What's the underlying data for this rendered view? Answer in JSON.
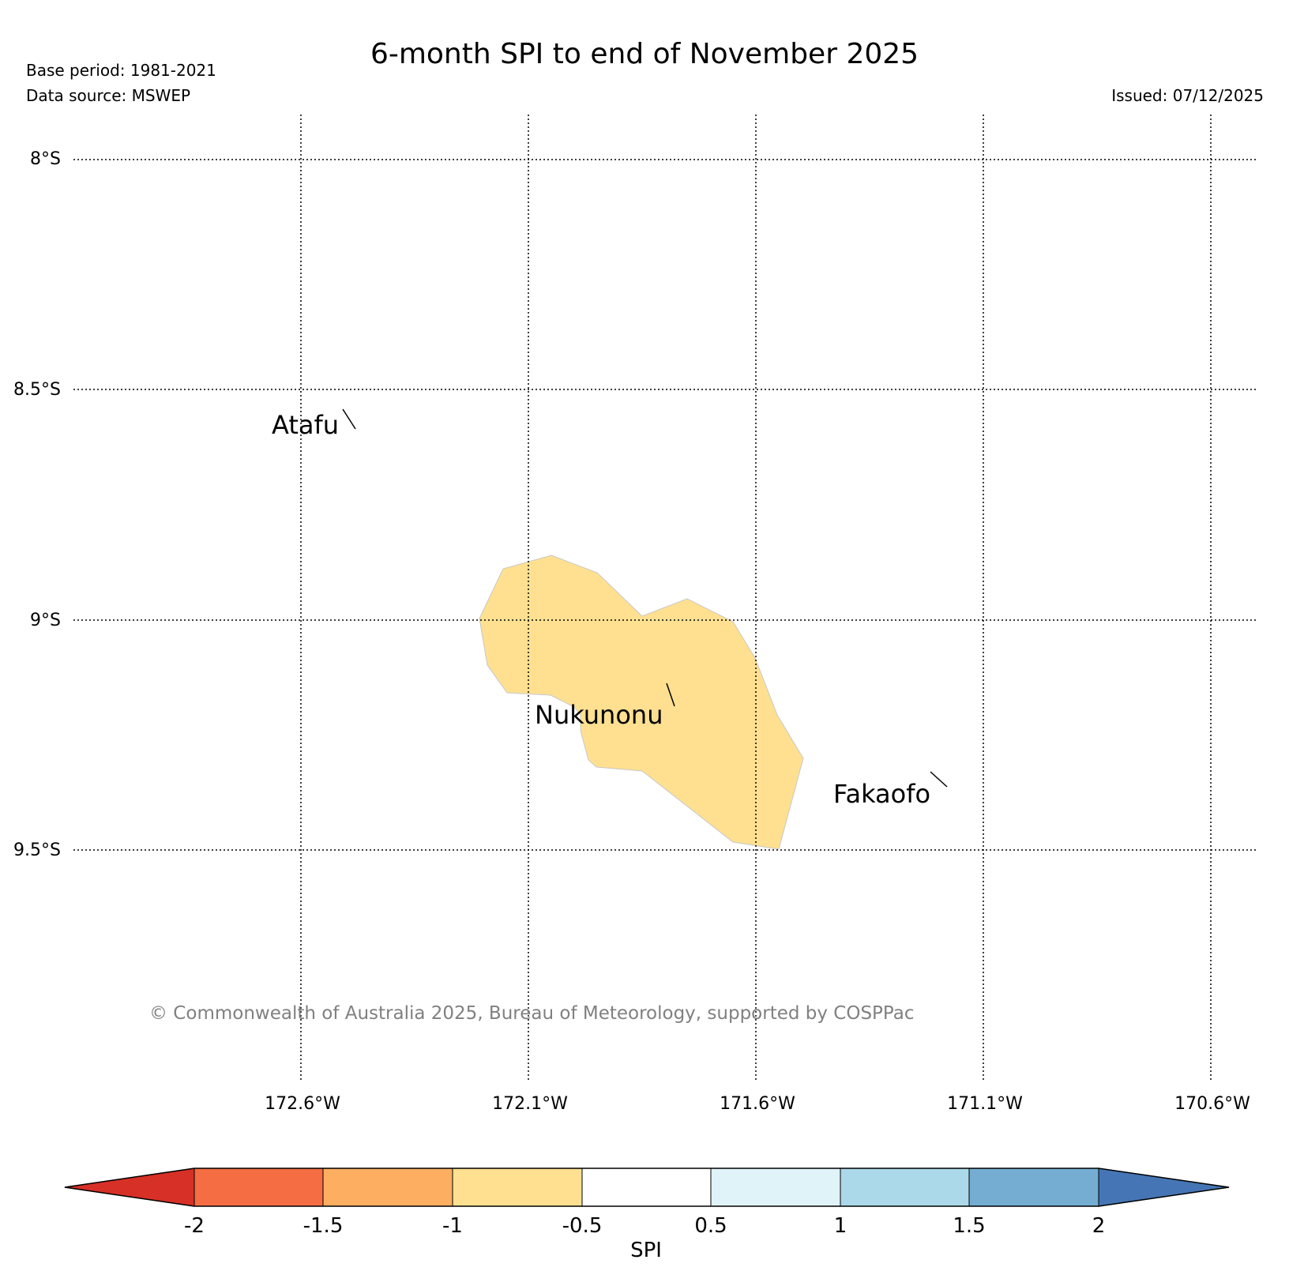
{
  "header": {
    "title": "6-month SPI to end of November 2025",
    "base_period": "Base period: 1981-2021",
    "data_source": "Data source: MSWEP",
    "issued": "Issued: 07/12/2025"
  },
  "map": {
    "lat_labels": [
      "8°S",
      "8.5°S",
      "9°S",
      "9.5°S"
    ],
    "lon_labels": [
      "172.6°W",
      "172.1°W",
      "171.6°W",
      "171.1°W",
      "170.6°W"
    ],
    "places": [
      {
        "name": "Atafu"
      },
      {
        "name": "Nukunonu"
      },
      {
        "name": "Fakaofo"
      }
    ],
    "anomaly_region": {
      "category": "-1 to -0.5",
      "color": "#fee090"
    },
    "copyright": "© Commonwealth of Australia 2025, Bureau of Meteorology, supported by COSPPac"
  },
  "colorbar": {
    "label": "SPI",
    "ticks": [
      "-2",
      "-1.5",
      "-1",
      "-0.5",
      "0.5",
      "1",
      "1.5",
      "2"
    ],
    "colors": [
      "#d73027",
      "#f46d43",
      "#fdae61",
      "#fee090",
      "#ffffff",
      "#e0f3f8",
      "#abd9e9",
      "#74add1",
      "#4575b4"
    ]
  }
}
